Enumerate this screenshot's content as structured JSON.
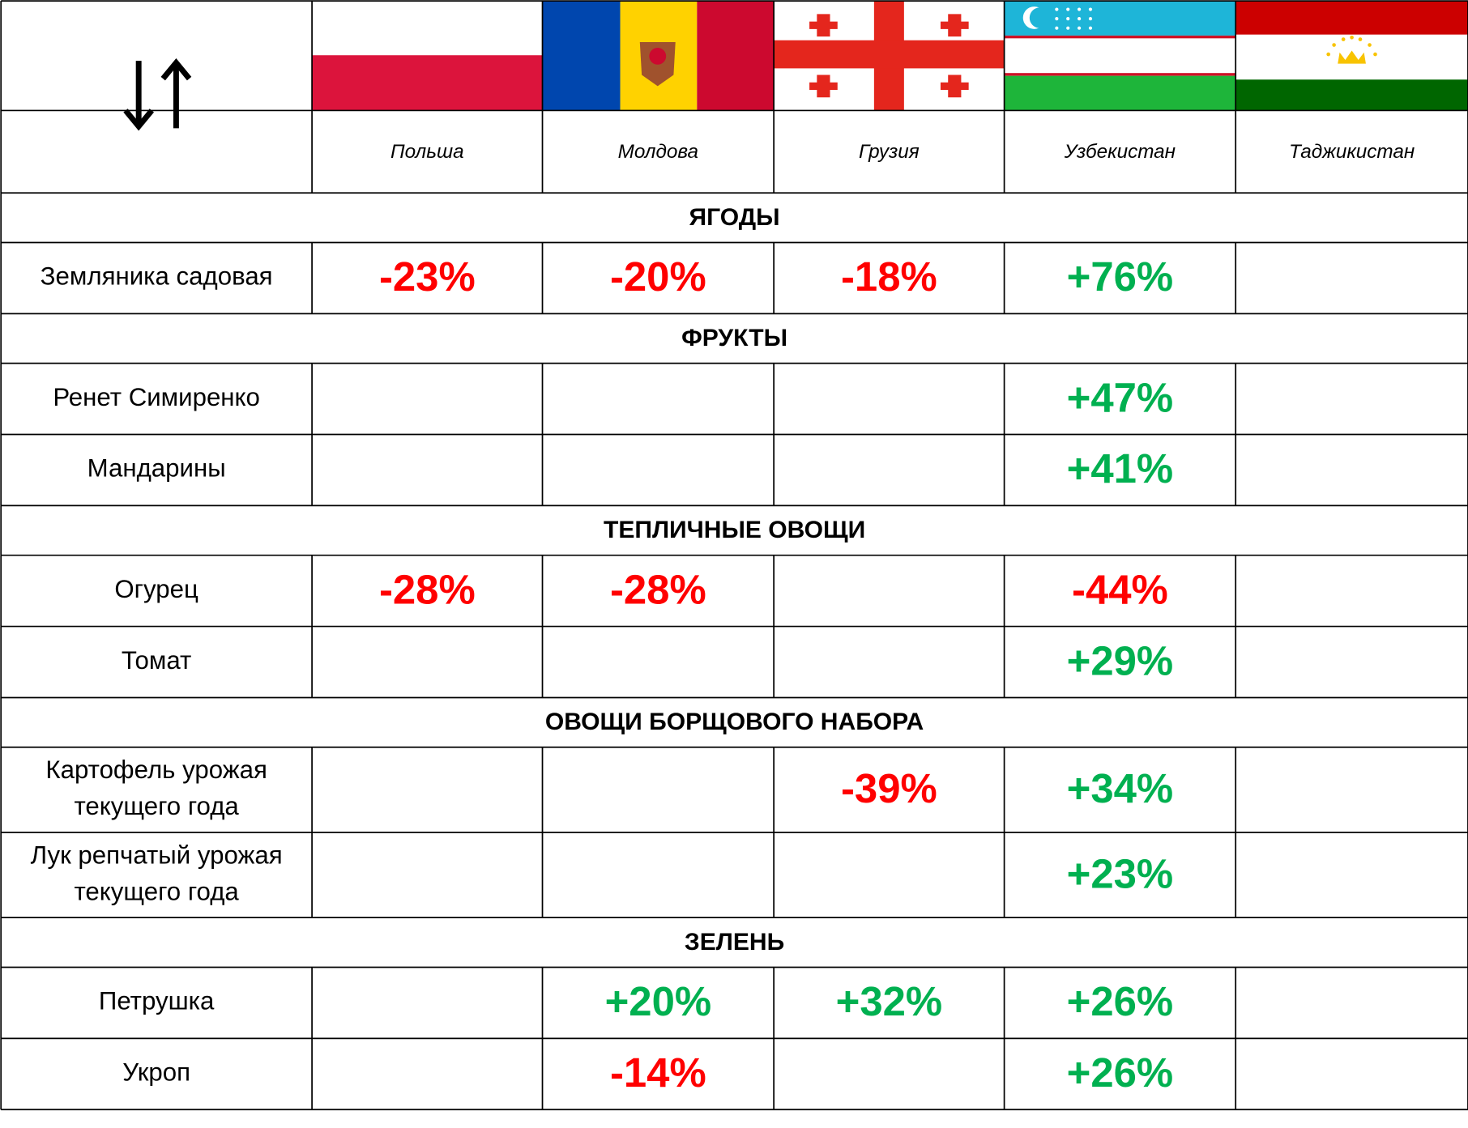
{
  "columns": [
    "Польша",
    "Молдова",
    "Грузия",
    "Узбекистан",
    "Таджикистан"
  ],
  "sections": [
    {
      "title": "ЯГОДЫ",
      "rows": [
        {
          "label": [
            "Земляника садовая"
          ],
          "cells": [
            "-23%",
            "-20%",
            "-18%",
            "+76%",
            null
          ]
        }
      ]
    },
    {
      "title": "ФРУКТЫ",
      "rows": [
        {
          "label": [
            "Ренет Симиренко"
          ],
          "cells": [
            null,
            null,
            null,
            "+47%",
            null
          ]
        },
        {
          "label": [
            "Мандарины"
          ],
          "cells": [
            null,
            null,
            null,
            "+41%",
            null
          ]
        }
      ]
    },
    {
      "title": "ТЕПЛИЧНЫЕ ОВОЩИ",
      "rows": [
        {
          "label": [
            "Огурец"
          ],
          "cells": [
            "-28%",
            "-28%",
            null,
            "-44%",
            null
          ]
        },
        {
          "label": [
            "Томат"
          ],
          "cells": [
            null,
            null,
            null,
            "+29%",
            null
          ]
        }
      ]
    },
    {
      "title": "ОВОЩИ БОРЩОВОГО НАБОРА",
      "rows": [
        {
          "label": [
            "Картофель урожая",
            "текущего года"
          ],
          "cells": [
            null,
            null,
            "-39%",
            "+34%",
            null
          ]
        },
        {
          "label": [
            "Лук репчатый урожая",
            "текущего года"
          ],
          "cells": [
            null,
            null,
            null,
            "+23%",
            null
          ]
        }
      ]
    },
    {
      "title": "ЗЕЛЕНЬ",
      "rows": [
        {
          "label": [
            "Петрушка"
          ],
          "cells": [
            null,
            "+20%",
            "+32%",
            "+26%",
            null
          ]
        },
        {
          "label": [
            "Укроп"
          ],
          "cells": [
            null,
            "-14%",
            null,
            "+26%",
            null
          ]
        }
      ]
    }
  ]
}
